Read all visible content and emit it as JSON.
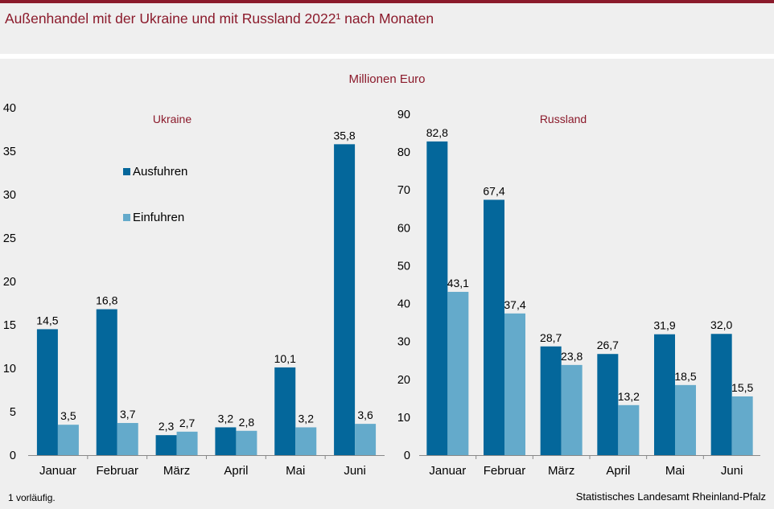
{
  "header": {
    "title": "Außenhandel mit der Ukraine  und mit Russland 2022¹ nach Monaten",
    "unit": "Millionen  Euro"
  },
  "colors": {
    "accent": "#8b1a2b",
    "exports": "#04679b",
    "imports": "#64aacb"
  },
  "footnote": "1 vorläufig.",
  "source": "Statistisches Landesamt  Rheinland-Pfalz",
  "chart_data": [
    {
      "type": "bar",
      "title": "Ukraine",
      "categories": [
        "Januar",
        "Februar",
        "März",
        "April",
        "Mai",
        "Juni"
      ],
      "series": [
        {
          "name": "Ausfuhren",
          "values": [
            14.5,
            16.8,
            2.3,
            3.2,
            10.1,
            35.8
          ],
          "labels": [
            "14,5",
            "16,8",
            "2,3",
            "3,2",
            "10,1",
            "35,8"
          ]
        },
        {
          "name": "Einfuhren",
          "values": [
            3.5,
            3.7,
            2.7,
            2.8,
            3.2,
            3.6
          ],
          "labels": [
            "3,5",
            "3,7",
            "2,7",
            "2,8",
            "3,2",
            "3,6"
          ]
        }
      ],
      "ylim": [
        0,
        40
      ],
      "yticks": [
        0,
        5,
        10,
        15,
        20,
        25,
        30,
        35,
        40
      ],
      "legend": "upper-left"
    },
    {
      "type": "bar",
      "title": "Russland",
      "categories": [
        "Januar",
        "Februar",
        "März",
        "April",
        "Mai",
        "Juni"
      ],
      "series": [
        {
          "name": "Ausfuhren",
          "values": [
            82.8,
            67.4,
            28.7,
            26.7,
            31.9,
            32.0
          ],
          "labels": [
            "82,8",
            "67,4",
            "28,7",
            "26,7",
            "31,9",
            "32,0"
          ]
        },
        {
          "name": "Einfuhren",
          "values": [
            43.1,
            37.4,
            23.8,
            13.2,
            18.5,
            15.5
          ],
          "labels": [
            "43,1",
            "37,4",
            "23,8",
            "13,2",
            "18,5",
            "15,5"
          ]
        }
      ],
      "ylim": [
        0,
        90
      ],
      "yticks": [
        0,
        10,
        20,
        30,
        40,
        50,
        60,
        70,
        80,
        90
      ]
    }
  ]
}
